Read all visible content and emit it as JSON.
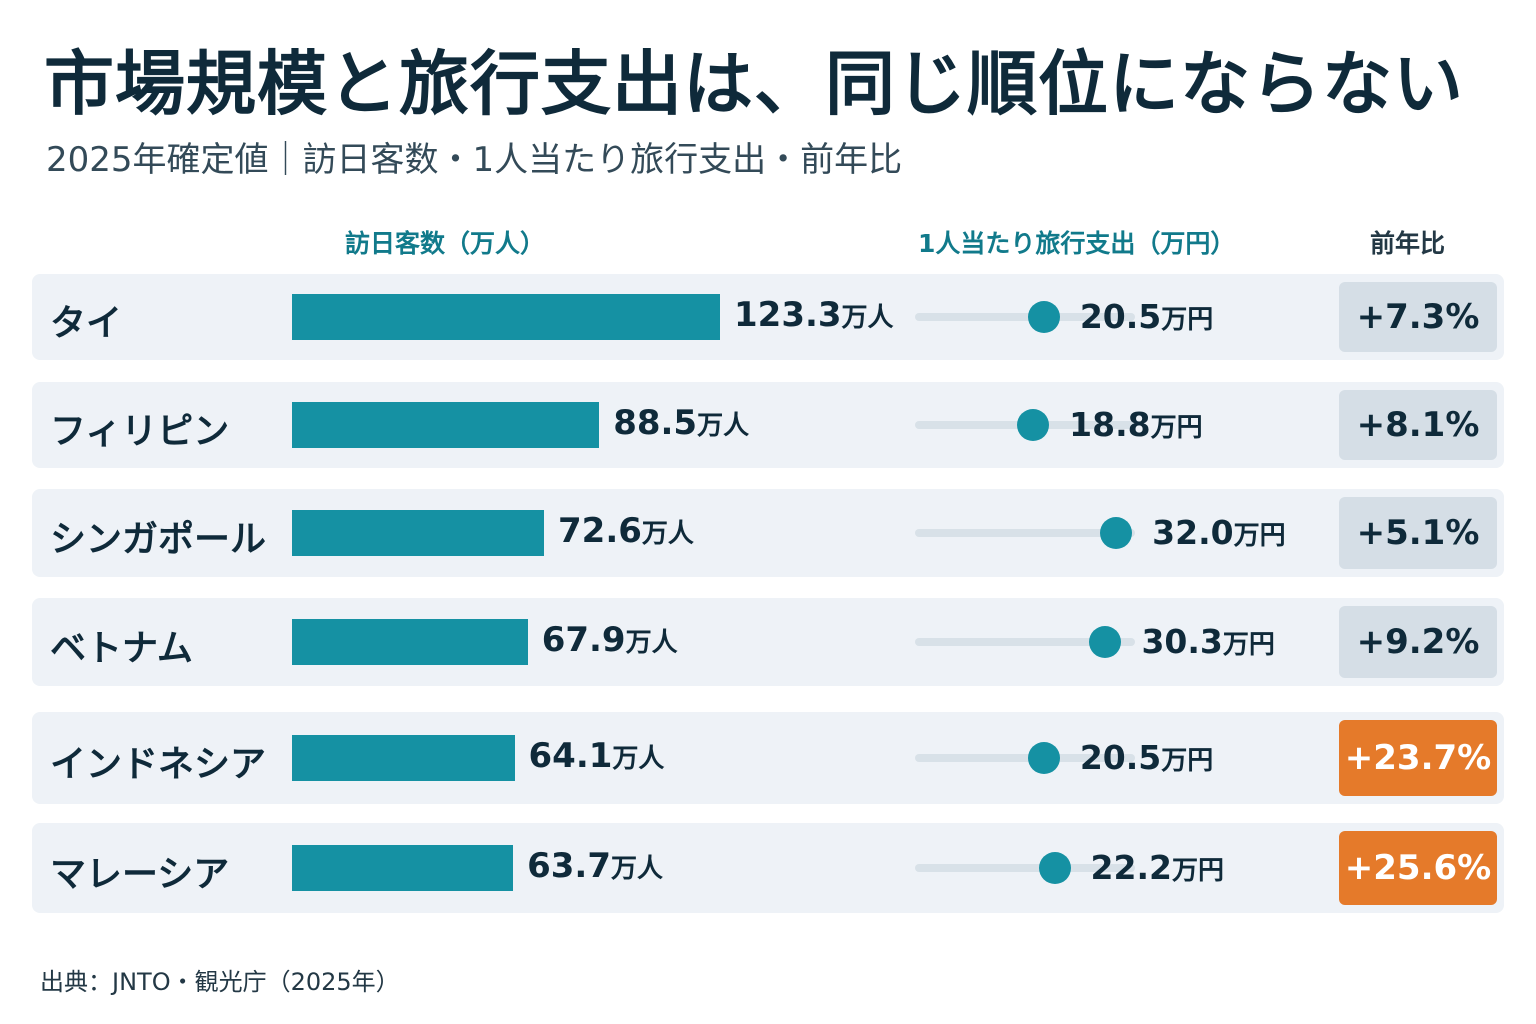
{
  "title": "市場規模と旅行支出は、同じ順位にならない",
  "subtitle": "2025年確定値｜訪日客数・1人当たり旅行支出・前年比",
  "columns": {
    "visitors": "訪日客数（万人）",
    "spend": "1人当たり旅行支出（万円）",
    "yoy": "前年比"
  },
  "source": "出典：JNTO・観光庁（2025年）",
  "colors": {
    "bar": "#1591a3",
    "highlight": "#e57a2a",
    "badge": "#d5dee6",
    "row_bg": "#eef2f7"
  },
  "chart_data": {
    "type": "bar",
    "categories": [
      "タイ",
      "フィリピン",
      "シンガポール",
      "ベトナム",
      "インドネシア",
      "マレーシア"
    ],
    "series": [
      {
        "name": "訪日客数（万人）",
        "values": [
          123.3,
          88.5,
          72.6,
          67.9,
          64.1,
          63.7
        ],
        "labels": [
          "123.3",
          "88.5",
          "72.6",
          "67.9",
          "64.1",
          "63.7"
        ],
        "unit": "万人"
      },
      {
        "name": "1人当たり旅行支出（万円）",
        "values": [
          20.5,
          18.8,
          32.0,
          30.3,
          20.5,
          22.2
        ],
        "labels": [
          "20.5",
          "18.8",
          "32.0",
          "30.3",
          "20.5",
          "22.2"
        ],
        "unit": "万円"
      },
      {
        "name": "前年比",
        "values": [
          7.3,
          8.1,
          5.1,
          9.2,
          23.7,
          25.6
        ],
        "labels": [
          "+7.3%",
          "+8.1%",
          "+5.1%",
          "+9.2%",
          "+23.7%",
          "+25.6%"
        ],
        "highlighted": [
          false,
          false,
          false,
          false,
          true,
          true
        ]
      }
    ],
    "visitors_max": 123.3,
    "spend_range": [
      0,
      35
    ],
    "grid": false
  }
}
